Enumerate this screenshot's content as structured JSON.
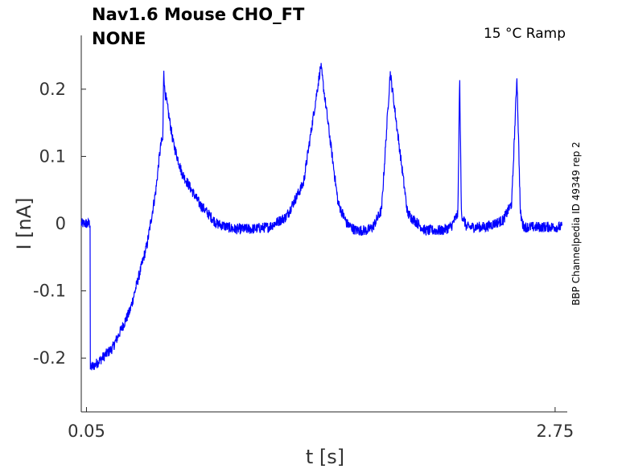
{
  "chart_data": {
    "type": "line",
    "title_line1": "Nav1.6  Mouse  CHO_FT",
    "title_line2": "NONE",
    "condition": "15 °C  Ramp",
    "side_label": "BBP Channelpedia ID 49349 rep 2",
    "xlabel": "t [s]",
    "ylabel": "I [nA]",
    "xlim": [
      0.02,
      2.82
    ],
    "ylim": [
      -0.28,
      0.28
    ],
    "x_ticks": [
      0.05,
      2.75
    ],
    "x_tick_labels": [
      "0.05",
      "2.75"
    ],
    "y_ticks": [
      -0.2,
      -0.1,
      0,
      0.1,
      0.2
    ],
    "y_tick_labels": [
      "-0.2",
      "-0.1",
      "0",
      "0.1",
      "0.2"
    ],
    "grid": false,
    "series_color": "#0000ff",
    "series": [
      {
        "x": [
          0.02,
          0.05,
          0.071,
          0.072,
          0.1,
          0.2,
          0.3,
          0.4,
          0.45,
          0.47,
          0.48,
          0.49,
          0.495,
          0.5,
          0.55,
          0.6,
          0.7,
          0.8,
          0.9,
          1.0,
          1.1,
          1.2,
          1.3,
          1.4,
          1.5,
          1.55,
          1.6,
          1.63,
          1.67,
          1.7,
          1.75,
          1.8,
          1.9,
          2.0,
          2.1,
          2.15,
          2.19,
          2.2,
          2.21,
          2.24,
          2.28,
          2.35,
          2.45,
          2.5,
          2.53,
          2.55,
          2.565,
          2.58,
          2.62,
          2.68,
          2.79
        ],
        "y": [
          0.0,
          0.0,
          0.0,
          -0.215,
          -0.21,
          -0.185,
          -0.13,
          -0.03,
          0.05,
          0.1,
          0.12,
          0.125,
          0.235,
          0.2,
          0.12,
          0.075,
          0.03,
          0.0,
          -0.008,
          -0.008,
          -0.005,
          0.01,
          0.06,
          0.235,
          0.03,
          0.0,
          -0.01,
          -0.01,
          -0.01,
          -0.005,
          0.02,
          0.225,
          0.015,
          -0.01,
          -0.01,
          -0.005,
          0.015,
          0.22,
          0.015,
          -0.005,
          -0.005,
          -0.005,
          0.005,
          0.03,
          0.22,
          0.015,
          -0.003,
          -0.005,
          -0.005,
          -0.005,
          -0.005
        ]
      }
    ]
  }
}
